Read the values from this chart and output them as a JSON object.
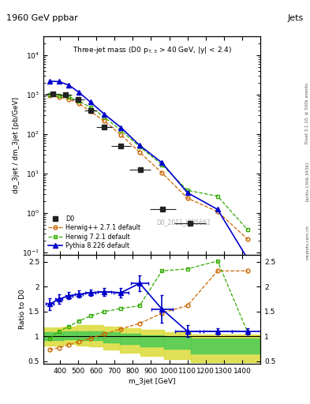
{
  "title_top": "1960 GeV ppbar",
  "title_top_right": "Jets",
  "subtitle": "Three-jet mass (D0 p_{T,3} > 40 GeV, |y| < 2.4)",
  "xlabel": "m_3jet [GeV]",
  "ylabel_main": "dσ_3jet / dm_3jet [pb/GeV]",
  "ylabel_ratio": "Ratio to D0",
  "watermark": "D0_2011_I895662",
  "right_label_1": "Rivet 3.1.10, ≥ 500k events",
  "right_label_2": "[arXiv:1306.3436]",
  "right_label_3": "mcplots.cern.ch",
  "d0_x": [
    360,
    430,
    500,
    570,
    645,
    735,
    840,
    965,
    1115,
    1290
  ],
  "d0_y": [
    1050,
    990,
    760,
    395,
    150,
    50,
    12.5,
    1.3,
    0.55,
    0.0
  ],
  "d0_xerr": [
    35,
    35,
    35,
    35,
    45,
    55,
    60,
    70,
    85,
    90
  ],
  "d0_yerr_lo": [
    80,
    70,
    55,
    28,
    12,
    4.5,
    1.2,
    0.25,
    0.08,
    0.0
  ],
  "d0_yerr_hi": [
    80,
    70,
    55,
    28,
    12,
    4.5,
    1.2,
    0.25,
    0.08,
    0.0
  ],
  "herwig_x": [
    345,
    395,
    450,
    505,
    568,
    645,
    735,
    838,
    960,
    1100,
    1265,
    1430
  ],
  "herwig_y": [
    940,
    870,
    770,
    590,
    380,
    215,
    96,
    35,
    10.5,
    2.4,
    1.1,
    0.22
  ],
  "herwig721_x": [
    345,
    395,
    450,
    505,
    568,
    645,
    735,
    838,
    960,
    1100,
    1265,
    1430
  ],
  "herwig721_y": [
    990,
    940,
    875,
    700,
    475,
    270,
    125,
    48,
    17,
    3.8,
    2.7,
    0.38
  ],
  "pythia_x": [
    345,
    395,
    450,
    505,
    568,
    645,
    735,
    838,
    960,
    1100,
    1265,
    1430
  ],
  "pythia_y": [
    2200,
    2150,
    1750,
    1150,
    650,
    320,
    148,
    52,
    19,
    3.3,
    1.25,
    0.07
  ],
  "ratio_herwig_x": [
    345,
    395,
    450,
    505,
    568,
    645,
    735,
    838,
    960,
    1100,
    1265,
    1430
  ],
  "ratio_herwig_y": [
    0.73,
    0.77,
    0.83,
    0.89,
    0.96,
    1.05,
    1.15,
    1.26,
    1.47,
    1.62,
    2.32,
    2.32
  ],
  "ratio_herwig721_x": [
    345,
    395,
    450,
    505,
    568,
    645,
    735,
    838,
    960,
    1100,
    1265,
    1430
  ],
  "ratio_herwig721_y": [
    0.96,
    1.1,
    1.2,
    1.31,
    1.41,
    1.5,
    1.56,
    1.62,
    2.32,
    2.36,
    2.52,
    1.08
  ],
  "ratio_pythia_x": [
    345,
    395,
    450,
    505,
    568,
    645,
    735,
    838,
    960,
    1100,
    1265,
    1430
  ],
  "ratio_pythia_y": [
    1.65,
    1.75,
    1.82,
    1.85,
    1.88,
    1.9,
    1.88,
    2.07,
    1.55,
    1.1,
    1.1,
    1.1
  ],
  "ratio_pythia_xerr": [
    20,
    20,
    20,
    20,
    28,
    35,
    42,
    48,
    58,
    68,
    78,
    88
  ],
  "ratio_pythia_yerr": [
    0.12,
    0.09,
    0.07,
    0.07,
    0.07,
    0.08,
    0.09,
    0.16,
    0.28,
    0.12,
    0.06,
    0.06
  ],
  "band_edges": [
    310,
    420,
    490,
    560,
    640,
    730,
    840,
    970,
    1120,
    1500
  ],
  "band_outer_lo": [
    0.82,
    0.84,
    0.82,
    0.8,
    0.73,
    0.67,
    0.6,
    0.55,
    0.48,
    0.48
  ],
  "band_outer_hi": [
    1.18,
    1.2,
    1.22,
    1.22,
    1.2,
    1.17,
    1.13,
    1.08,
    1.03,
    1.03
  ],
  "band_inner_lo": [
    0.92,
    0.94,
    0.93,
    0.92,
    0.88,
    0.85,
    0.8,
    0.75,
    0.65,
    0.65
  ],
  "band_inner_hi": [
    1.08,
    1.1,
    1.1,
    1.1,
    1.08,
    1.05,
    1.02,
    0.98,
    0.95,
    0.95
  ],
  "color_d0": "#222222",
  "color_herwig": "#cc6600",
  "color_herwig721": "#33aa00",
  "color_pythia": "#0000cc",
  "color_band_inner": "#55cc55",
  "color_band_outer": "#dddd44",
  "xlim": [
    310,
    1500
  ],
  "ylim_main": [
    0.09,
    30000
  ],
  "ylim_ratio": [
    0.45,
    2.65
  ],
  "xticks": [
    400,
    500,
    600,
    700,
    800,
    900,
    1000,
    1100,
    1200,
    1300,
    1400
  ],
  "xtick_labels": [
    "400",
    "500",
    "600",
    "700",
    "800",
    "900",
    "1000",
    "1100",
    "1200",
    "1300",
    "1400"
  ],
  "yticks_ratio": [
    0.5,
    1.0,
    1.5,
    2.0,
    2.5
  ],
  "legend_entries": [
    "D0",
    "Herwig++ 2.7.1 default",
    "Herwig 7.2.1 default",
    "Pythia 8.226 default"
  ]
}
